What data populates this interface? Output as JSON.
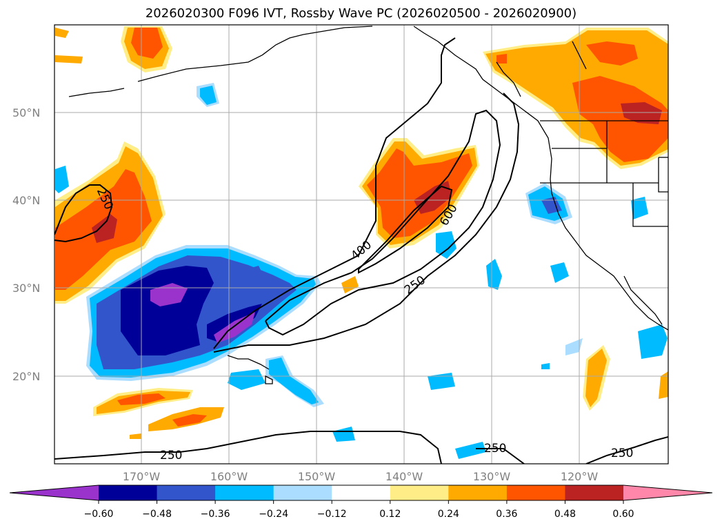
{
  "title": "2026020300 F096 IVT, Rossby Wave PC (2026020500 - 2026020900)",
  "map": {
    "lat_labels": [
      "50°N",
      "40°N",
      "30°N",
      "20°N"
    ],
    "lon_labels": [
      "170°W",
      "160°W",
      "150°W",
      "140°W",
      "130°W",
      "120°W"
    ],
    "contour_labels": [
      "250",
      "400",
      "600",
      "250",
      "250",
      "250",
      "250"
    ]
  },
  "colorbar": {
    "ticks": [
      "−0.60",
      "−0.48",
      "−0.36",
      "−0.24",
      "−0.12",
      "0.12",
      "0.24",
      "0.36",
      "0.48",
      "0.60"
    ],
    "colors": [
      "#9933cc",
      "#000099",
      "#3355cc",
      "#00bbff",
      "#aaddff",
      "#ffffff",
      "#ffee88",
      "#ffaa00",
      "#ff5500",
      "#bb2222",
      "#ff88aa"
    ]
  }
}
